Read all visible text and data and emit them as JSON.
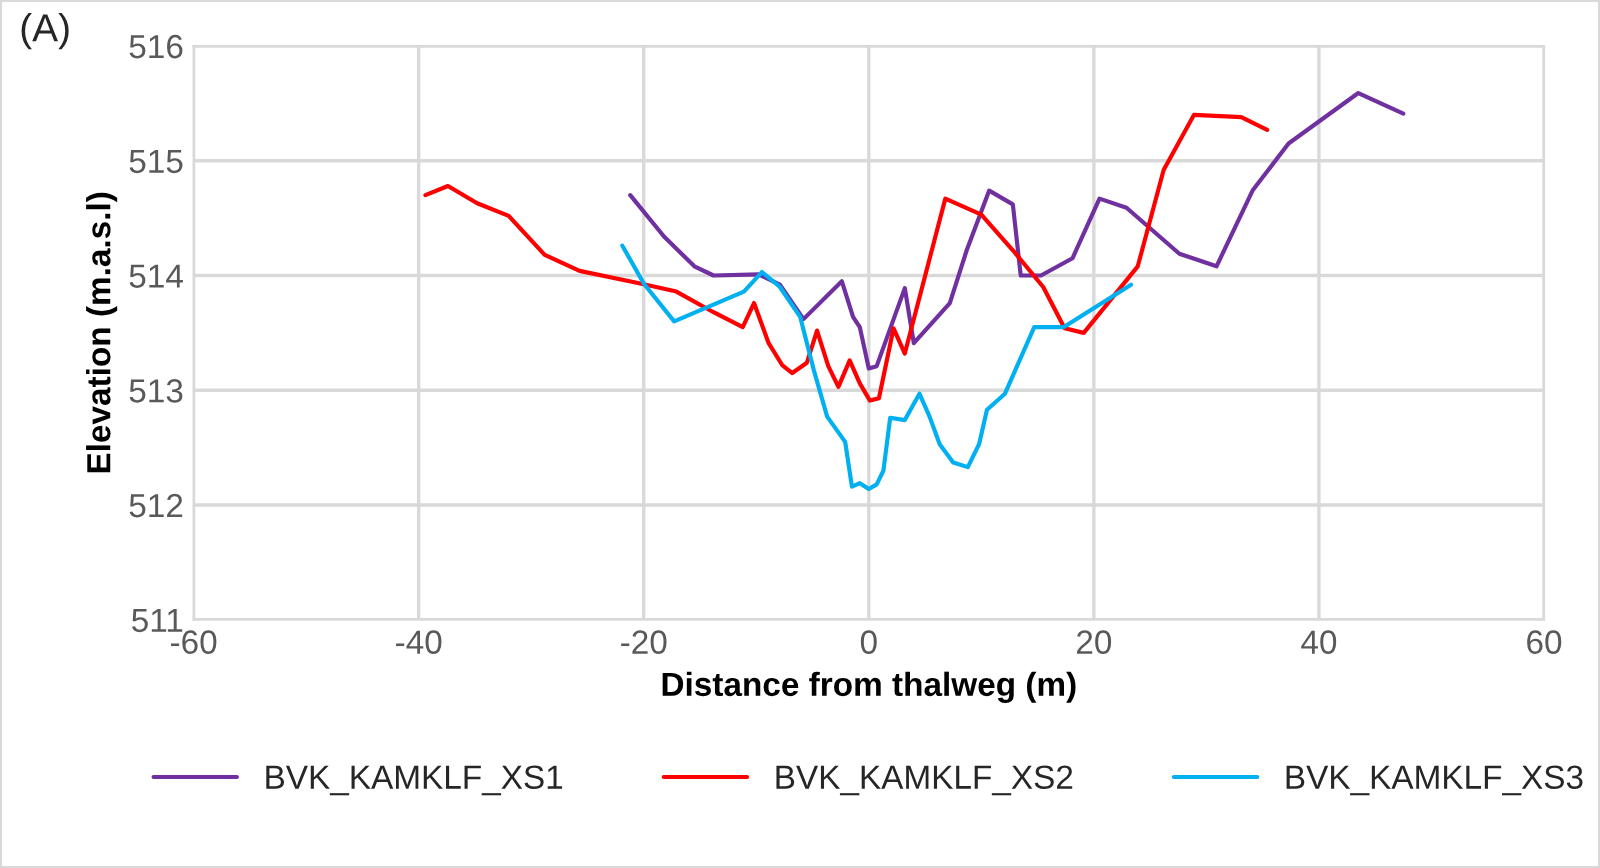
{
  "chart_data": {
    "type": "line",
    "xlabel": "Distance from thalweg (m)",
    "ylabel": "Elevation (m.a.s.l)",
    "annotations": [
      "(A)"
    ],
    "xlim": [
      -60,
      60
    ],
    "xticks": [
      -60,
      -40,
      -20,
      0,
      20,
      40,
      60
    ],
    "ylim": [
      511,
      516
    ],
    "yticks": [
      511,
      512,
      513,
      514,
      515,
      516
    ],
    "grid": true,
    "legend": "bottom",
    "marker": "none",
    "line_style": "solid",
    "series": [
      {
        "name": "BVK_KAMKLF_XS1",
        "color": "#7030a0",
        "x": [
          -21.2,
          -18.2,
          -15.5,
          -13.8,
          -9.8,
          -7.9,
          -5.8,
          -2.4,
          -1.4,
          -0.8,
          0.0,
          0.7,
          3.2,
          4.0,
          7.2,
          8.7,
          10.7,
          12.8,
          13.5,
          15.3,
          18.1,
          20.5,
          22.9,
          27.6,
          30.9,
          34.1,
          37.3,
          43.5,
          47.5
        ],
        "values": [
          514.7,
          514.34,
          514.08,
          514.0,
          514.01,
          513.92,
          513.62,
          513.95,
          513.64,
          513.55,
          513.19,
          513.21,
          513.89,
          513.41,
          513.76,
          514.22,
          514.74,
          514.62,
          514.0,
          514.0,
          514.15,
          514.67,
          514.59,
          514.19,
          514.08,
          514.74,
          515.15,
          515.59,
          515.41
        ]
      },
      {
        "name": "BVK_KAMKLF_XS2",
        "color": "#ff0000",
        "x": [
          -39.4,
          -37.4,
          -34.8,
          -32.0,
          -28.8,
          -25.7,
          -20.3,
          -17.1,
          -13.8,
          -11.2,
          -10.2,
          -8.9,
          -7.7,
          -6.8,
          -5.5,
          -4.6,
          -3.6,
          -2.7,
          -1.7,
          -0.8,
          0.1,
          0.9,
          2.2,
          3.2,
          6.8,
          10.0,
          12.8,
          15.5,
          17.4,
          19.1,
          23.9,
          26.2,
          28.9,
          33.1,
          35.4
        ],
        "values": [
          514.7,
          514.78,
          514.63,
          514.52,
          514.18,
          514.04,
          513.93,
          513.86,
          513.68,
          513.55,
          513.76,
          513.41,
          513.22,
          513.15,
          513.24,
          513.52,
          513.21,
          513.03,
          513.26,
          513.06,
          512.91,
          512.93,
          513.54,
          513.32,
          514.67,
          514.53,
          514.22,
          513.9,
          513.54,
          513.5,
          514.08,
          514.92,
          515.4,
          515.38,
          515.27
        ]
      },
      {
        "name": "BVK_KAMKLF_XS3",
        "color": "#00b0f0",
        "x": [
          -21.9,
          -20.0,
          -17.3,
          -11.1,
          -9.5,
          -7.9,
          -6.1,
          -4.9,
          -3.7,
          -2.1,
          -1.5,
          -0.8,
          0.0,
          0.7,
          1.3,
          1.9,
          3.2,
          4.5,
          5.4,
          6.3,
          7.5,
          8.8,
          9.8,
          10.5,
          12.1,
          14.7,
          17.3,
          23.3
        ],
        "values": [
          514.26,
          513.93,
          513.6,
          513.86,
          514.03,
          513.9,
          513.64,
          513.18,
          512.77,
          512.55,
          512.16,
          512.19,
          512.14,
          512.18,
          512.3,
          512.76,
          512.74,
          512.97,
          512.77,
          512.53,
          512.37,
          512.33,
          512.53,
          512.83,
          512.97,
          513.55,
          513.55,
          513.92
        ]
      }
    ]
  }
}
